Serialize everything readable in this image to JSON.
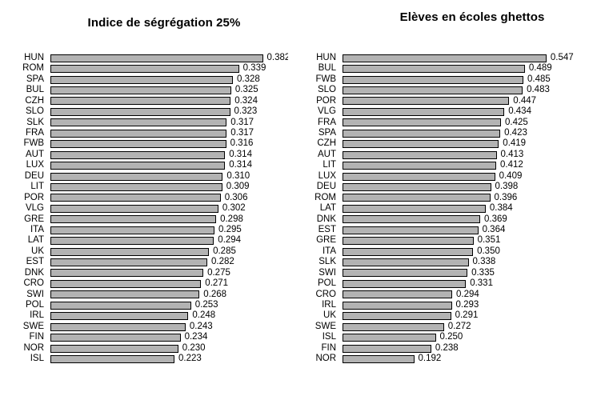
{
  "figure": {
    "background": "#ffffff",
    "bar_fill": "#b3b3b3",
    "bar_border": "#000000",
    "text_color": "#000000"
  },
  "chart_data": [
    {
      "type": "bar",
      "orientation": "horizontal",
      "title": "Indice de ségrégation 25%",
      "xlabel": "",
      "ylabel": "",
      "xlim": [
        0,
        0.4
      ],
      "grid": false,
      "legend": false,
      "bar_color": "#b3b3b3",
      "bar_border_color": "#000000",
      "categories": [
        "HUN",
        "ROM",
        "SPA",
        "BUL",
        "CZH",
        "SLO",
        "SLK",
        "FRA",
        "FWB",
        "AUT",
        "LUX",
        "DEU",
        "LIT",
        "POR",
        "VLG",
        "GRE",
        "ITA",
        "LAT",
        "UK",
        "EST",
        "DNK",
        "CRO",
        "SWI",
        "POL",
        "IRL",
        "SWE",
        "FIN",
        "NOR",
        "ISL"
      ],
      "values": [
        0.382,
        0.339,
        0.328,
        0.325,
        0.324,
        0.323,
        0.317,
        0.317,
        0.316,
        0.314,
        0.314,
        0.31,
        0.309,
        0.306,
        0.302,
        0.298,
        0.295,
        0.294,
        0.285,
        0.282,
        0.275,
        0.271,
        0.268,
        0.253,
        0.248,
        0.243,
        0.234,
        0.23,
        0.223
      ]
    },
    {
      "type": "bar",
      "orientation": "horizontal",
      "title": "Elèves en écoles ghettos",
      "xlabel": "",
      "ylabel": "",
      "xlim": [
        0,
        0.6
      ],
      "grid": false,
      "legend": false,
      "bar_color": "#b3b3b3",
      "bar_border_color": "#000000",
      "categories": [
        "HUN",
        "BUL",
        "FWB",
        "SLO",
        "POR",
        "VLG",
        "FRA",
        "SPA",
        "CZH",
        "AUT",
        "LIT",
        "LUX",
        "DEU",
        "ROM",
        "LAT",
        "DNK",
        "EST",
        "GRE",
        "ITA",
        "SLK",
        "SWI",
        "POL",
        "CRO",
        "IRL",
        "UK",
        "SWE",
        "ISL",
        "FIN",
        "NOR"
      ],
      "values": [
        0.547,
        0.489,
        0.485,
        0.483,
        0.447,
        0.434,
        0.425,
        0.423,
        0.419,
        0.413,
        0.412,
        0.409,
        0.398,
        0.396,
        0.384,
        0.369,
        0.364,
        0.351,
        0.35,
        0.338,
        0.335,
        0.331,
        0.294,
        0.293,
        0.291,
        0.272,
        0.25,
        0.238,
        0.192
      ]
    }
  ]
}
